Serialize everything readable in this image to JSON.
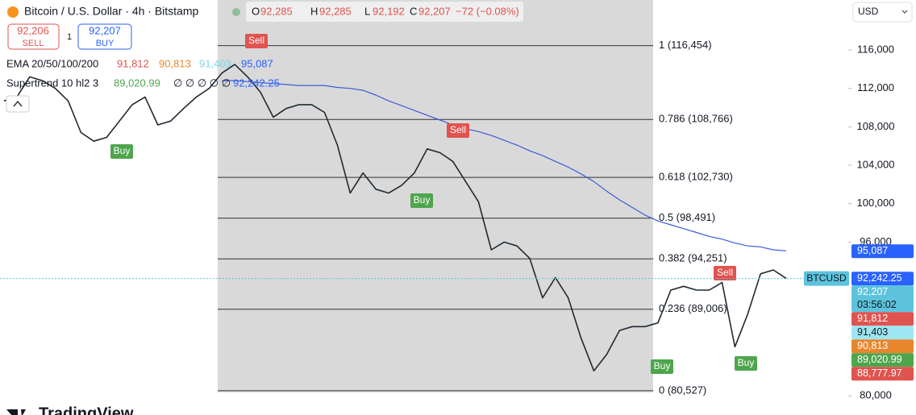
{
  "header": {
    "symbol": "Bitcoin / U.S. Dollar · 4h · Bitstamp",
    "ohlc": [
      {
        "key": "O",
        "value": "92,285"
      },
      {
        "key": "H",
        "value": "92,285"
      },
      {
        "key": "L",
        "value": "92,192"
      },
      {
        "key": "C",
        "value": "92,207"
      }
    ],
    "change": "−72 (−0.08%)"
  },
  "trade": {
    "sell_price": "92,206",
    "sell": "SELL",
    "quantity": "1",
    "buy_price": "92,207",
    "buy": "BUY"
  },
  "indicators": [
    {
      "name": "EMA 20/50/100/200",
      "values": [
        "91,812",
        "90,813",
        "91,403",
        "95,087"
      ]
    },
    {
      "name": "Supertrend 10 hl2 3",
      "values": [
        "89,020.99",
        "∅ ∅ ∅ ∅ ∅",
        "92,242.25"
      ]
    }
  ],
  "currency": "USD",
  "brand": "TradingView",
  "chart_data": {
    "type": "line",
    "series": [
      {
        "name": "BTCUSD",
        "color": "#1f2a33",
        "values": [
          110700,
          111100,
          113200,
          112800,
          112000,
          110700,
          107400,
          106500,
          106900,
          108600,
          110300,
          111100,
          108200,
          108600,
          109900,
          111100,
          112000,
          113600,
          114500,
          113200,
          111600,
          109000,
          109900,
          110300,
          110300,
          109500,
          106100,
          101100,
          103200,
          101500,
          101100,
          101900,
          103200,
          105700,
          105300,
          104400,
          102300,
          100200,
          95200,
          96000,
          95600,
          94300,
          90200,
          92300,
          90200,
          86000,
          82600,
          84300,
          86800,
          87200,
          87200,
          87600,
          91000,
          91400,
          91000,
          91000,
          91800,
          85100,
          88500,
          92700,
          93100,
          92207
        ]
      },
      {
        "color": "#3f5bd6",
        "values": [
          null,
          null,
          null,
          null,
          null,
          null,
          null,
          null,
          null,
          null,
          null,
          null,
          null,
          null,
          null,
          null,
          null,
          112800,
          112800,
          112700,
          112600,
          112500,
          112400,
          112300,
          112300,
          112300,
          112100,
          112000,
          111800,
          111300,
          110700,
          110200,
          109700,
          109200,
          108700,
          108200,
          107800,
          107500,
          107100,
          106600,
          106100,
          105500,
          105000,
          104400,
          103800,
          103100,
          102300,
          101300,
          100400,
          99600,
          98800,
          98200,
          97800,
          97400,
          97000,
          96600,
          96300,
          95900,
          95600,
          95500,
          95200,
          95087
        ]
      }
    ],
    "ylim": [
      78000,
      121200
    ],
    "yticks": [
      {
        "value": 80000,
        "label": "80,000"
      },
      {
        "value": 96000,
        "label": "96,000"
      },
      {
        "value": 100000,
        "label": "100,000"
      },
      {
        "value": 104000,
        "label": "104,000"
      },
      {
        "value": 108000,
        "label": "108,000"
      },
      {
        "value": 112000,
        "label": "112,000"
      },
      {
        "value": 116000,
        "label": "116,000"
      }
    ],
    "fib_levels": [
      {
        "value": 116454,
        "label": "1 (116,454)"
      },
      {
        "value": 108766,
        "label": "0.786 (108,766)"
      },
      {
        "value": 102730,
        "label": "0.618 (102,730)"
      },
      {
        "value": 98491,
        "label": "0.5 (98,491)"
      },
      {
        "value": 94251,
        "label": "0.382 (94,251)"
      },
      {
        "value": 89006,
        "label": "0.236 (89,006)"
      },
      {
        "value": 80527,
        "label": "0 (80,527)"
      }
    ],
    "signals": [
      "Sell",
      "Sell",
      "Buy",
      "Buy",
      "Sell",
      "Buy",
      "Buy"
    ],
    "price_badges": [
      {
        "value": 95087,
        "label": "95,087",
        "color": "#2962ff"
      },
      {
        "value": 92242.25,
        "label": "92,242.25",
        "color": "#2962ff"
      },
      {
        "value": 92207,
        "label": "92,207",
        "sublabel": "03:56:02",
        "color": "#5dc3dc"
      },
      {
        "value": 91812,
        "label": "91,812",
        "color": "#e0534f"
      },
      {
        "value": 91403,
        "label": "91,403",
        "color": "#9ee6f2"
      },
      {
        "value": 90813,
        "label": "90,813",
        "color": "#e8862e"
      },
      {
        "value": 89020.99,
        "label": "89,020.99",
        "color": "#4ea54c"
      },
      {
        "value": 88777.97,
        "label": "88,777.97",
        "color": "#e0534f"
      }
    ]
  }
}
